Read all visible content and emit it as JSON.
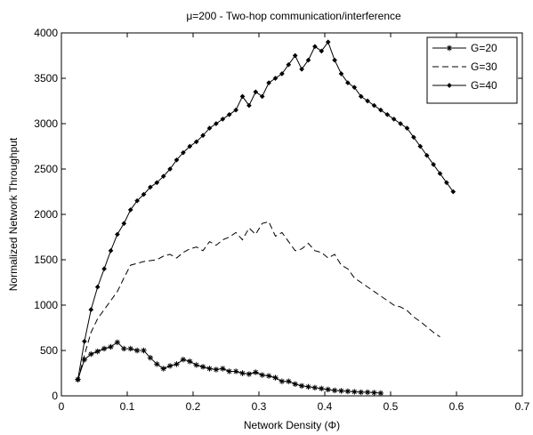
{
  "chart_data": {
    "type": "line",
    "title": "μ=200 -  Two-hop communication/interference",
    "xlabel": "Network Density (Φ)",
    "ylabel": "Normalized Network Throughput",
    "xlim": [
      0,
      0.7
    ],
    "ylim": [
      0,
      4000
    ],
    "xticks": [
      "0",
      "0.1",
      "0.2",
      "0.3",
      "0.4",
      "0.5",
      "0.6",
      "0.7"
    ],
    "yticks": [
      "0",
      "500",
      "1000",
      "1500",
      "2000",
      "2500",
      "3000",
      "3500",
      "4000"
    ],
    "grid": false,
    "legend_position": "top-right",
    "series": [
      {
        "name": "G=20",
        "line_style": "solid",
        "marker": "asterisk",
        "color": "#000000",
        "x": [
          0.025,
          0.035,
          0.045,
          0.055,
          0.065,
          0.075,
          0.085,
          0.095,
          0.105,
          0.115,
          0.125,
          0.135,
          0.145,
          0.155,
          0.165,
          0.175,
          0.185,
          0.195,
          0.205,
          0.215,
          0.225,
          0.235,
          0.245,
          0.255,
          0.265,
          0.275,
          0.285,
          0.295,
          0.305,
          0.315,
          0.325,
          0.335,
          0.345,
          0.355,
          0.365,
          0.375,
          0.385,
          0.395,
          0.405,
          0.415,
          0.425,
          0.435,
          0.445,
          0.455,
          0.465,
          0.475,
          0.485
        ],
        "y": [
          180,
          400,
          460,
          490,
          520,
          540,
          590,
          520,
          520,
          500,
          500,
          420,
          350,
          300,
          330,
          350,
          400,
          380,
          340,
          320,
          300,
          290,
          300,
          270,
          270,
          250,
          240,
          260,
          230,
          220,
          200,
          160,
          160,
          130,
          110,
          100,
          90,
          80,
          70,
          60,
          55,
          50,
          45,
          40,
          40,
          35,
          30
        ]
      },
      {
        "name": "G=30",
        "line_style": "dashed",
        "marker": "none",
        "color": "#000000",
        "x": [
          0.025,
          0.035,
          0.045,
          0.055,
          0.065,
          0.075,
          0.085,
          0.095,
          0.105,
          0.115,
          0.125,
          0.135,
          0.145,
          0.155,
          0.165,
          0.175,
          0.185,
          0.195,
          0.205,
          0.215,
          0.225,
          0.235,
          0.245,
          0.255,
          0.265,
          0.275,
          0.285,
          0.295,
          0.305,
          0.315,
          0.325,
          0.335,
          0.345,
          0.355,
          0.365,
          0.375,
          0.385,
          0.395,
          0.405,
          0.415,
          0.425,
          0.435,
          0.445,
          0.455,
          0.465,
          0.475,
          0.485,
          0.495,
          0.505,
          0.515,
          0.525,
          0.535,
          0.545,
          0.555,
          0.565,
          0.575
        ],
        "y": [
          170,
          450,
          700,
          850,
          950,
          1050,
          1150,
          1300,
          1440,
          1460,
          1480,
          1490,
          1500,
          1540,
          1560,
          1520,
          1580,
          1620,
          1640,
          1600,
          1700,
          1660,
          1720,
          1750,
          1800,
          1720,
          1850,
          1780,
          1900,
          1920,
          1760,
          1800,
          1700,
          1600,
          1620,
          1680,
          1600,
          1580,
          1520,
          1560,
          1440,
          1400,
          1300,
          1250,
          1200,
          1150,
          1100,
          1050,
          1000,
          980,
          940,
          870,
          820,
          760,
          700,
          650
        ]
      },
      {
        "name": "G=40",
        "line_style": "solid",
        "marker": "diamond",
        "color": "#000000",
        "x": [
          0.025,
          0.035,
          0.045,
          0.055,
          0.065,
          0.075,
          0.085,
          0.095,
          0.105,
          0.115,
          0.125,
          0.135,
          0.145,
          0.155,
          0.165,
          0.175,
          0.185,
          0.195,
          0.205,
          0.215,
          0.225,
          0.235,
          0.245,
          0.255,
          0.265,
          0.275,
          0.285,
          0.295,
          0.305,
          0.315,
          0.325,
          0.335,
          0.345,
          0.355,
          0.365,
          0.375,
          0.385,
          0.395,
          0.405,
          0.415,
          0.425,
          0.435,
          0.445,
          0.455,
          0.465,
          0.475,
          0.485,
          0.495,
          0.505,
          0.515,
          0.525,
          0.535,
          0.545,
          0.555,
          0.565,
          0.575,
          0.585,
          0.595
        ],
        "y": [
          180,
          600,
          950,
          1200,
          1400,
          1600,
          1780,
          1900,
          2050,
          2150,
          2220,
          2300,
          2350,
          2420,
          2500,
          2600,
          2680,
          2750,
          2800,
          2870,
          2950,
          3000,
          3050,
          3100,
          3150,
          3300,
          3200,
          3350,
          3300,
          3450,
          3500,
          3550,
          3650,
          3750,
          3600,
          3700,
          3850,
          3800,
          3900,
          3700,
          3550,
          3450,
          3400,
          3300,
          3250,
          3200,
          3150,
          3100,
          3050,
          3000,
          2950,
          2850,
          2750,
          2650,
          2550,
          2450,
          2350,
          2250
        ]
      }
    ]
  }
}
